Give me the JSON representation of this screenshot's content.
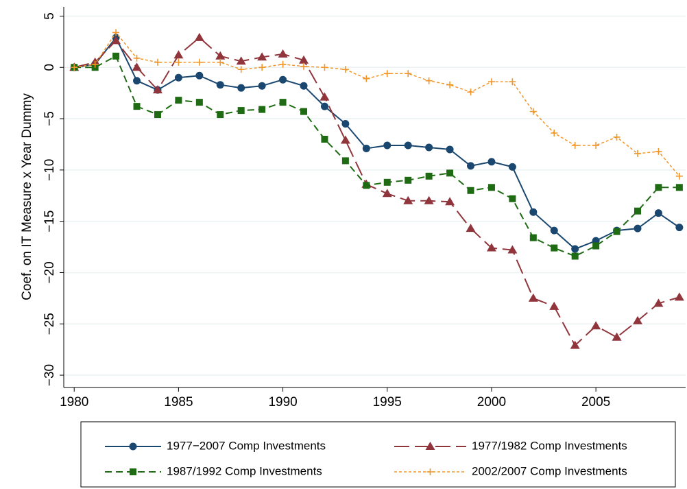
{
  "chart_data": {
    "type": "line",
    "ylabel": "Coef. on IT Measure x Year Dummy",
    "x": [
      1980,
      1981,
      1982,
      1983,
      1984,
      1985,
      1986,
      1987,
      1988,
      1989,
      1990,
      1991,
      1992,
      1993,
      1994,
      1995,
      1996,
      1997,
      1998,
      1999,
      2000,
      2001,
      2002,
      2003,
      2004,
      2005,
      2006,
      2007,
      2008,
      2009
    ],
    "xlim": [
      1979.5,
      2009.3
    ],
    "xticks": [
      1980,
      1985,
      1990,
      1995,
      2000,
      2005
    ],
    "ylim": [
      -31.2,
      5.9
    ],
    "yticks": [
      5,
      0,
      {
        "value": -5,
        "label": "−5"
      },
      {
        "value": -10,
        "label": "−10"
      },
      {
        "value": -15,
        "label": "−15"
      },
      {
        "value": -20,
        "label": "−20"
      },
      {
        "value": -25,
        "label": "−25"
      },
      {
        "value": -30,
        "label": "−30"
      }
    ],
    "grid": true,
    "series": [
      {
        "name": "1977−2007 Comp Investments",
        "color": "#1a476f",
        "marker": "circle",
        "dash": "solid",
        "values": [
          0,
          0.3,
          2.9,
          -1.3,
          -2.2,
          -1.0,
          -0.8,
          -1.7,
          -2.0,
          -1.8,
          -1.2,
          -1.8,
          -3.8,
          -5.5,
          -7.9,
          -7.6,
          -7.6,
          -7.8,
          -8.0,
          -9.6,
          -9.2,
          -9.7,
          -14.1,
          -15.9,
          -17.7,
          -16.9,
          -15.9,
          -15.7,
          -14.2,
          -15.6
        ]
      },
      {
        "name": "1977/1982 Comp Investments",
        "color": "#90353b",
        "marker": "triangle",
        "dash": "long",
        "values": [
          0,
          0.5,
          2.6,
          0,
          -2.2,
          1.2,
          2.9,
          1.1,
          0.6,
          1.0,
          1.3,
          0.7,
          -2.9,
          -7.1,
          -11.4,
          -12.3,
          -13.0,
          -13.0,
          -13.1,
          -15.7,
          -17.6,
          -17.8,
          -22.5,
          -23.3,
          -27.1,
          -25.2,
          -26.3,
          -24.7,
          -23.0,
          -22.4
        ]
      },
      {
        "name": "1987/1992 Comp Investments",
        "color": "#1e6b13",
        "marker": "square",
        "dash": "medium",
        "values": [
          0,
          0,
          1.1,
          -3.8,
          -4.6,
          -3.2,
          -3.4,
          -4.6,
          -4.2,
          -4.1,
          -3.4,
          -4.3,
          -7.0,
          -9.1,
          -11.5,
          -11.2,
          -11.0,
          -10.6,
          -10.3,
          -12.0,
          -11.7,
          -12.8,
          -16.6,
          -17.6,
          -18.4,
          -17.4,
          -16.0,
          -14.0,
          -11.7,
          -11.7
        ]
      },
      {
        "name": "2002/2007 Comp Investments",
        "color": "#f0962a",
        "marker": "plus",
        "dash": "short",
        "values": [
          0,
          0.3,
          3.4,
          0.9,
          0.5,
          0.5,
          0.5,
          0.5,
          -0.2,
          0,
          0.3,
          0.1,
          0,
          -0.2,
          -1.1,
          -0.6,
          -0.6,
          -1.3,
          -1.7,
          -2.4,
          -1.4,
          -1.4,
          -4.3,
          -6.4,
          -7.6,
          -7.6,
          -6.8,
          -8.4,
          -8.2,
          -10.6
        ]
      }
    ]
  }
}
